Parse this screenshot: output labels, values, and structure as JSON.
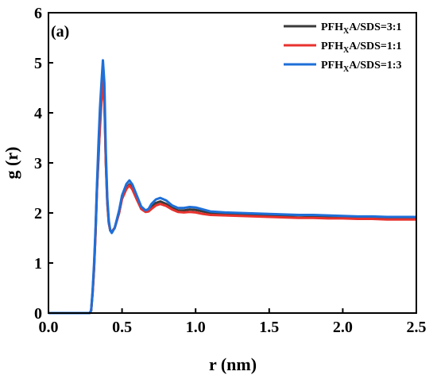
{
  "chart_data": {
    "type": "line",
    "panel_label": "(a)",
    "xlabel": "r (nm)",
    "ylabel": "g (r)",
    "xlim": [
      0.0,
      2.5
    ],
    "ylim": [
      0,
      6
    ],
    "xticks": [
      "0.0",
      "0.5",
      "1.0",
      "1.5",
      "2.0",
      "2.5"
    ],
    "yticks": [
      "0",
      "1",
      "2",
      "3",
      "4",
      "5",
      "6"
    ],
    "grid": false,
    "legend_position": "top-right",
    "legend": [
      {
        "prefix": "PFH",
        "sub": "X",
        "suffix": "A/SDS=3:1",
        "color": "#3a3a3a"
      },
      {
        "prefix": "PFH",
        "sub": "X",
        "suffix": "A/SDS=1:1",
        "color": "#e8322d"
      },
      {
        "prefix": "PFH",
        "sub": "X",
        "suffix": "A/SDS=1:3",
        "color": "#1e6fd8"
      }
    ],
    "series": [
      {
        "name": "PFHXA/SDS=3:1",
        "color": "#3a3a3a",
        "x": [
          0.0,
          0.28,
          0.29,
          0.3,
          0.31,
          0.32,
          0.33,
          0.34,
          0.35,
          0.36,
          0.37,
          0.38,
          0.39,
          0.4,
          0.41,
          0.42,
          0.43,
          0.45,
          0.48,
          0.5,
          0.53,
          0.55,
          0.57,
          0.6,
          0.63,
          0.66,
          0.68,
          0.7,
          0.73,
          0.76,
          0.8,
          0.84,
          0.88,
          0.92,
          0.96,
          1.0,
          1.05,
          1.1,
          1.2,
          1.3,
          1.4,
          1.5,
          1.6,
          1.7,
          1.8,
          1.9,
          2.0,
          2.1,
          2.2,
          2.3,
          2.4,
          2.5
        ],
        "y": [
          0.0,
          0.0,
          0.05,
          0.4,
          0.9,
          1.6,
          2.5,
          3.1,
          3.8,
          4.3,
          4.8,
          4.3,
          3.0,
          2.2,
          1.8,
          1.65,
          1.62,
          1.7,
          2.0,
          2.3,
          2.5,
          2.57,
          2.5,
          2.3,
          2.1,
          2.03,
          2.05,
          2.12,
          2.2,
          2.23,
          2.18,
          2.1,
          2.05,
          2.05,
          2.07,
          2.06,
          2.03,
          2.0,
          1.99,
          1.98,
          1.97,
          1.96,
          1.95,
          1.95,
          1.94,
          1.93,
          1.93,
          1.92,
          1.92,
          1.91,
          1.9,
          1.9
        ]
      },
      {
        "name": "PFHXA/SDS=1:1",
        "color": "#e8322d",
        "x": [
          0.0,
          0.28,
          0.29,
          0.3,
          0.31,
          0.32,
          0.33,
          0.34,
          0.35,
          0.36,
          0.37,
          0.38,
          0.39,
          0.4,
          0.41,
          0.42,
          0.43,
          0.45,
          0.48,
          0.5,
          0.53,
          0.55,
          0.57,
          0.6,
          0.63,
          0.66,
          0.68,
          0.7,
          0.73,
          0.76,
          0.8,
          0.84,
          0.88,
          0.92,
          0.96,
          1.0,
          1.05,
          1.1,
          1.2,
          1.3,
          1.4,
          1.5,
          1.6,
          1.7,
          1.8,
          1.9,
          2.0,
          2.1,
          2.2,
          2.3,
          2.4,
          2.5
        ],
        "y": [
          0.0,
          0.0,
          0.05,
          0.4,
          0.9,
          1.6,
          2.5,
          3.2,
          3.7,
          4.2,
          4.65,
          4.2,
          3.0,
          2.2,
          1.8,
          1.65,
          1.63,
          1.7,
          2.0,
          2.28,
          2.48,
          2.55,
          2.47,
          2.27,
          2.08,
          2.02,
          2.03,
          2.08,
          2.15,
          2.18,
          2.14,
          2.07,
          2.02,
          2.01,
          2.02,
          2.01,
          1.98,
          1.96,
          1.95,
          1.94,
          1.93,
          1.92,
          1.91,
          1.9,
          1.9,
          1.89,
          1.89,
          1.88,
          1.88,
          1.87,
          1.87,
          1.87
        ]
      },
      {
        "name": "PFHXA/SDS=1:3",
        "color": "#1e6fd8",
        "x": [
          0.0,
          0.28,
          0.29,
          0.3,
          0.31,
          0.32,
          0.33,
          0.34,
          0.35,
          0.36,
          0.37,
          0.38,
          0.39,
          0.4,
          0.41,
          0.42,
          0.43,
          0.45,
          0.48,
          0.5,
          0.53,
          0.55,
          0.57,
          0.6,
          0.63,
          0.66,
          0.68,
          0.7,
          0.73,
          0.76,
          0.8,
          0.84,
          0.88,
          0.92,
          0.96,
          1.0,
          1.05,
          1.1,
          1.2,
          1.3,
          1.4,
          1.5,
          1.6,
          1.7,
          1.8,
          1.9,
          2.0,
          2.1,
          2.2,
          2.3,
          2.4,
          2.5
        ],
        "y": [
          0.0,
          0.0,
          0.05,
          0.45,
          1.0,
          1.7,
          2.6,
          3.4,
          4.1,
          4.6,
          5.05,
          4.6,
          3.2,
          2.3,
          1.85,
          1.65,
          1.6,
          1.7,
          2.05,
          2.35,
          2.58,
          2.65,
          2.57,
          2.35,
          2.13,
          2.05,
          2.08,
          2.18,
          2.27,
          2.3,
          2.25,
          2.15,
          2.1,
          2.1,
          2.12,
          2.11,
          2.07,
          2.03,
          2.01,
          2.0,
          1.99,
          1.98,
          1.97,
          1.96,
          1.96,
          1.95,
          1.94,
          1.93,
          1.93,
          1.92,
          1.92,
          1.92
        ]
      }
    ]
  }
}
